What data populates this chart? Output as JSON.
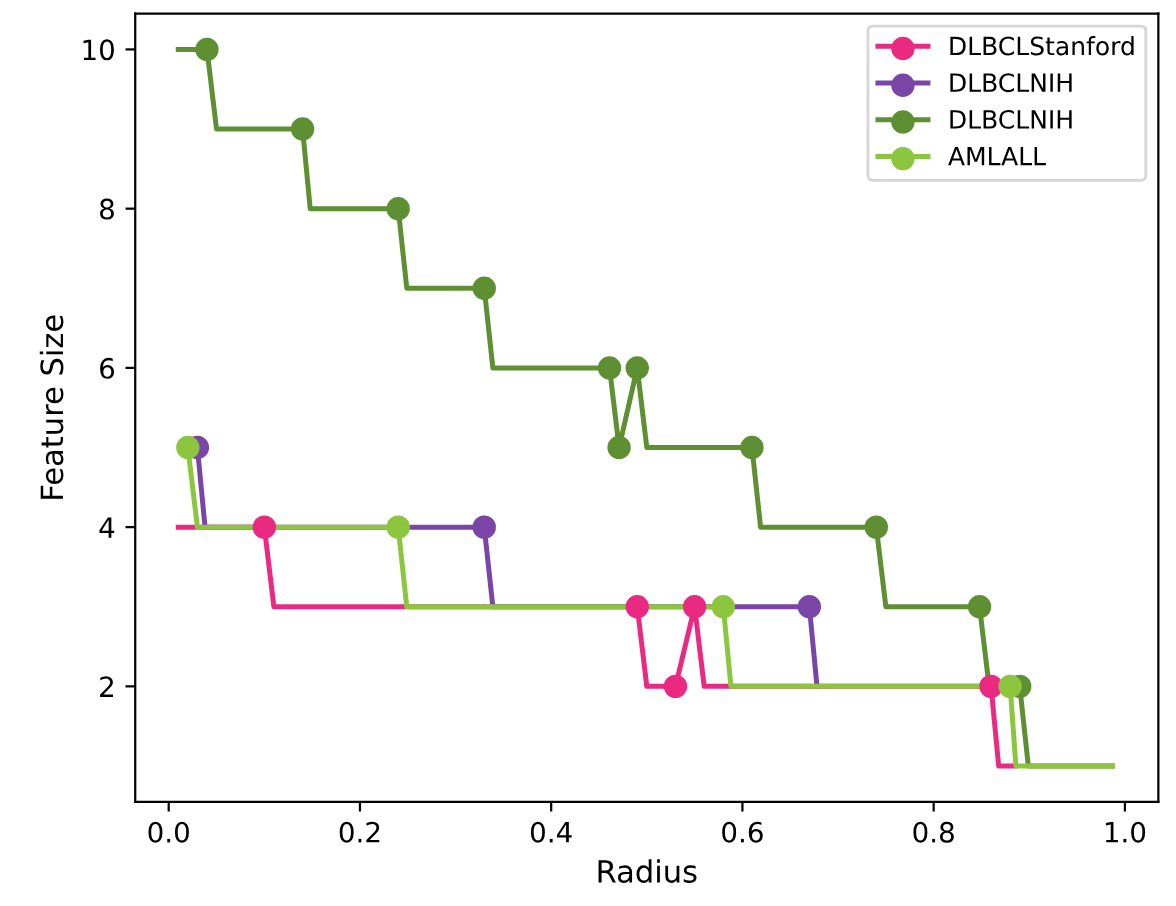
{
  "chart_data": {
    "type": "line",
    "xlabel": "Radius",
    "ylabel": "Feature Size",
    "xlim": [
      -0.035,
      1.035
    ],
    "xticks": [
      {
        "value": 0,
        "label": "0.0"
      },
      0.2,
      0.4,
      0.6,
      0.8,
      {
        "value": 1,
        "label": "1.0"
      }
    ],
    "ylim": [
      0.55,
      10.45
    ],
    "yticks": [
      2,
      4,
      6,
      8,
      10
    ],
    "grid": false,
    "legend": "top right",
    "series": [
      {
        "name": "DLBCLStanford",
        "color": "#ea2a82",
        "x": [
          0.01,
          0.1,
          0.11,
          0.49,
          0.5,
          0.53,
          0.55,
          0.56,
          0.86,
          0.868,
          0.885
        ],
        "values": [
          4,
          4,
          3,
          3,
          2,
          2,
          3,
          2,
          2,
          1,
          1
        ]
      },
      {
        "name": "DLBCLNIH",
        "color": "#7b45a8",
        "x": [
          0.03,
          0.038,
          0.33,
          0.339,
          0.67,
          0.678
        ],
        "values": [
          5,
          4,
          4,
          3,
          3,
          2
        ]
      },
      {
        "name": "DLBCLNIH",
        "color": "#5e8f32",
        "x": [
          0.01,
          0.04,
          0.05,
          0.14,
          0.148,
          0.24,
          0.249,
          0.33,
          0.339,
          0.461,
          0.471,
          0.49,
          0.5,
          0.61,
          0.619,
          0.74,
          0.75,
          0.848,
          0.858,
          0.89,
          0.899,
          0.987
        ],
        "values": [
          10,
          10,
          9,
          9,
          8,
          8,
          7,
          7,
          6,
          6,
          5,
          6,
          5,
          5,
          4,
          4,
          3,
          3,
          2,
          2,
          1,
          1
        ]
      },
      {
        "name": "AMLALL",
        "color": "#8cc63f",
        "x": [
          0.02,
          0.03,
          0.24,
          0.249,
          0.58,
          0.588,
          0.88,
          0.886,
          0.987
        ],
        "values": [
          5,
          4,
          4,
          3,
          3,
          2,
          2,
          1,
          1
        ]
      },
      {
        "color": "#ea2a82",
        "type": "scatter",
        "marker": "circle",
        "x": [
          0.1,
          0.49,
          0.53,
          0.55,
          0.86
        ],
        "values": [
          4,
          3,
          2,
          3,
          2
        ]
      },
      {
        "color": "#7b45a8",
        "type": "scatter",
        "marker": "circle",
        "x": [
          0.03,
          0.33,
          0.67
        ],
        "values": [
          5,
          4,
          3
        ]
      },
      {
        "color": "#5e8f32",
        "type": "scatter",
        "marker": "circle",
        "x": [
          0.04,
          0.14,
          0.24,
          0.33,
          0.461,
          0.471,
          0.49,
          0.61,
          0.74,
          0.848,
          0.89
        ],
        "values": [
          10,
          9,
          8,
          7,
          6,
          5,
          6,
          5,
          4,
          3,
          2
        ]
      },
      {
        "color": "#8cc63f",
        "type": "scatter",
        "marker": "circle",
        "x": [
          0.02,
          0.24,
          0.58,
          0.88
        ],
        "values": [
          5,
          4,
          3,
          2
        ]
      }
    ]
  }
}
